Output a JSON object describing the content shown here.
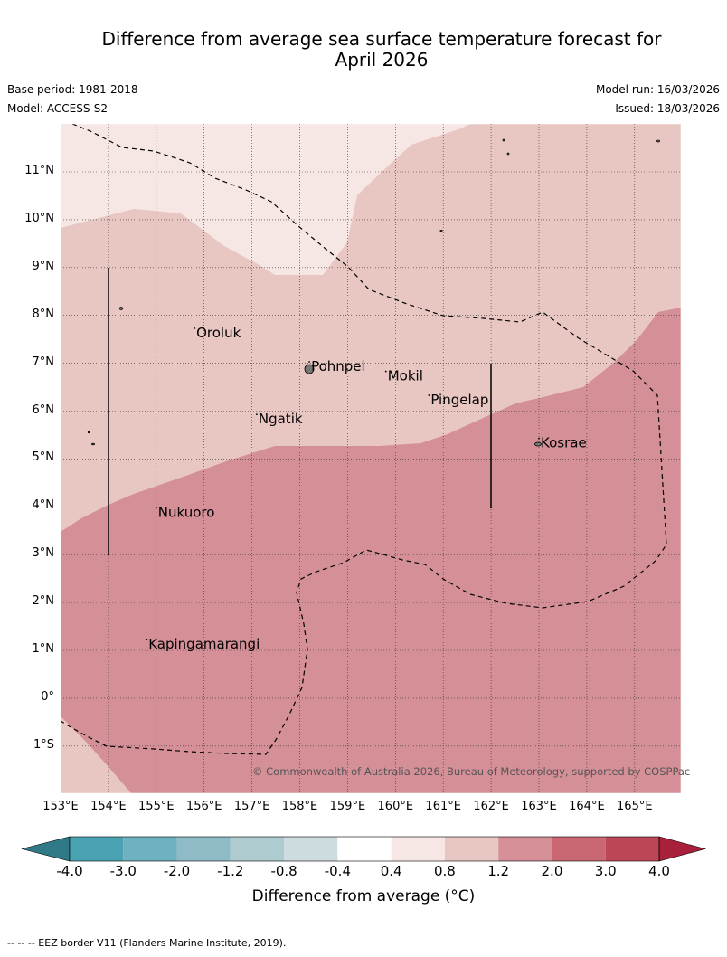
{
  "title_line1": "Difference from average sea surface temperature forecast for",
  "title_line2": "April 2026",
  "base_period": "Base period: 1981-2018",
  "model": "Model: ACCESS-S2",
  "model_run": "Model run: 16/03/2026",
  "issued": "Issued: 18/03/2026",
  "copyright": "© Commonwealth of Australia 2026, Bureau of Meteorology, supported by COSPPac",
  "colorbar": {
    "title": "Difference from average (°C)",
    "tick_labels": [
      "-4.0",
      "-3.0",
      "-2.0",
      "-1.2",
      "-0.8",
      "-0.4",
      "0.4",
      "0.8",
      "1.2",
      "2.0",
      "3.0",
      "4.0"
    ],
    "colors": [
      "#2f7a86",
      "#4aa3b3",
      "#6eb1c0",
      "#8fbbc6",
      "#aecbcf",
      "#cddcdf",
      "#ffffff",
      "#f6e6e4",
      "#e8c6c1",
      "#d58f97",
      "#c96872",
      "#bd4656",
      "#a8203b"
    ]
  },
  "footnote": "--  --  -- EEZ border V11 (Flanders Marine Institute, 2019).",
  "map": {
    "lat_labels": [
      "11°N",
      "10°N",
      "9°N",
      "8°N",
      "7°N",
      "6°N",
      "5°N",
      "4°N",
      "3°N",
      "2°N",
      "1°N",
      "0°",
      "1°S"
    ],
    "lon_labels": [
      "153°E",
      "154°E",
      "155°E",
      "156°E",
      "157°E",
      "158°E",
      "159°E",
      "160°E",
      "161°E",
      "162°E",
      "163°E",
      "164°E",
      "165°E"
    ],
    "lat_range": [
      -2,
      12
    ],
    "lon_range": [
      153,
      166
    ],
    "places": [
      {
        "name": "Oroluk",
        "lon": 155.8,
        "lat": 7.6
      },
      {
        "name": "Pohnpei",
        "lon": 158.2,
        "lat": 6.9
      },
      {
        "name": "Mokil",
        "lon": 159.8,
        "lat": 6.7
      },
      {
        "name": "Pingelap",
        "lon": 160.7,
        "lat": 6.2
      },
      {
        "name": "Ngatik",
        "lon": 157.1,
        "lat": 5.8
      },
      {
        "name": "Kosrae",
        "lon": 163.0,
        "lat": 5.3
      },
      {
        "name": "Nukuoro",
        "lon": 155.0,
        "lat": 3.85
      },
      {
        "name": "Kapingamarangi",
        "lon": 154.8,
        "lat": 1.1
      }
    ]
  }
}
